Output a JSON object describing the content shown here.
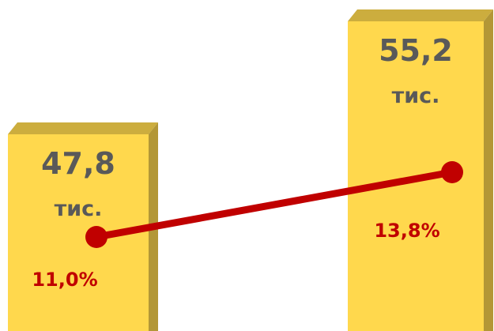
{
  "chart_data": {
    "type": "bar",
    "series": [
      {
        "type": "bar",
        "values": [
          47.8,
          55.2
        ],
        "value_labels": [
          "47,8 тис.",
          "55,2 тис."
        ],
        "color": "#ffd84d"
      },
      {
        "type": "line",
        "values": [
          11.0,
          13.8
        ],
        "value_labels": [
          "11,0%",
          "13,8%"
        ],
        "color": "#c00000"
      }
    ]
  }
}
